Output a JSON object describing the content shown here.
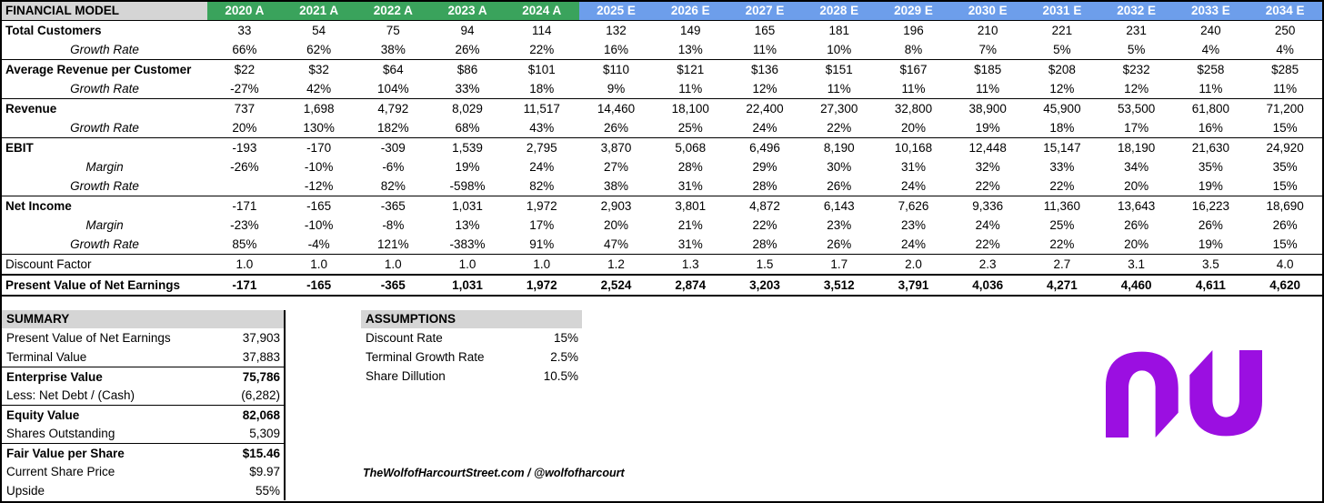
{
  "colors": {
    "actual_green": "#3aa35c",
    "estimate_blue": "#6d9eeb",
    "header_gray": "#d5d5d5",
    "brand_purple": "#9b0fe1"
  },
  "header": {
    "title": "FINANCIAL MODEL",
    "actual_years": [
      "2020 A",
      "2021 A",
      "2022 A",
      "2023 A",
      "2024 A"
    ],
    "estimate_years": [
      "2025 E",
      "2026 E",
      "2027 E",
      "2028 E",
      "2029 E",
      "2030 E",
      "2031 E",
      "2032 E",
      "2033 E",
      "2034 E"
    ]
  },
  "model": {
    "rows": [
      {
        "label": "Total Customers",
        "type": "bold",
        "values": [
          "33",
          "54",
          "75",
          "94",
          "114",
          "132",
          "149",
          "165",
          "181",
          "196",
          "210",
          "221",
          "231",
          "240",
          "250"
        ]
      },
      {
        "label": "Growth Rate",
        "type": "sub",
        "groupEnd": true,
        "values": [
          "66%",
          "62%",
          "38%",
          "26%",
          "22%",
          "16%",
          "13%",
          "11%",
          "10%",
          "8%",
          "7%",
          "5%",
          "5%",
          "4%",
          "4%"
        ]
      },
      {
        "label": "Average Revenue per Customer",
        "type": "bold",
        "values": [
          "$22",
          "$32",
          "$64",
          "$86",
          "$101",
          "$110",
          "$121",
          "$136",
          "$151",
          "$167",
          "$185",
          "$208",
          "$232",
          "$258",
          "$285"
        ]
      },
      {
        "label": "Growth Rate",
        "type": "sub",
        "groupEnd": true,
        "values": [
          "-27%",
          "42%",
          "104%",
          "33%",
          "18%",
          "9%",
          "11%",
          "12%",
          "11%",
          "11%",
          "11%",
          "12%",
          "12%",
          "11%",
          "11%"
        ]
      },
      {
        "label": "Revenue",
        "type": "bold",
        "values": [
          "737",
          "1,698",
          "4,792",
          "8,029",
          "11,517",
          "14,460",
          "18,100",
          "22,400",
          "27,300",
          "32,800",
          "38,900",
          "45,900",
          "53,500",
          "61,800",
          "71,200"
        ]
      },
      {
        "label": "Growth Rate",
        "type": "sub",
        "groupEnd": true,
        "values": [
          "20%",
          "130%",
          "182%",
          "68%",
          "43%",
          "26%",
          "25%",
          "24%",
          "22%",
          "20%",
          "19%",
          "18%",
          "17%",
          "16%",
          "15%"
        ]
      },
      {
        "label": "EBIT",
        "type": "bold",
        "values": [
          "-193",
          "-170",
          "-309",
          "1,539",
          "2,795",
          "3,870",
          "5,068",
          "6,496",
          "8,190",
          "10,168",
          "12,448",
          "15,147",
          "18,190",
          "21,630",
          "24,920"
        ]
      },
      {
        "label": "Margin",
        "type": "sub",
        "values": [
          "-26%",
          "-10%",
          "-6%",
          "19%",
          "24%",
          "27%",
          "28%",
          "29%",
          "30%",
          "31%",
          "32%",
          "33%",
          "34%",
          "35%",
          "35%"
        ]
      },
      {
        "label": "Growth Rate",
        "type": "sub",
        "groupEnd": true,
        "values": [
          "",
          "-12%",
          "82%",
          "-598%",
          "82%",
          "38%",
          "31%",
          "28%",
          "26%",
          "24%",
          "22%",
          "22%",
          "20%",
          "19%",
          "15%"
        ]
      },
      {
        "label": "Net Income",
        "type": "bold",
        "values": [
          "-171",
          "-165",
          "-365",
          "1,031",
          "1,972",
          "2,903",
          "3,801",
          "4,872",
          "6,143",
          "7,626",
          "9,336",
          "11,360",
          "13,643",
          "16,223",
          "18,690"
        ]
      },
      {
        "label": "Margin",
        "type": "sub",
        "values": [
          "-23%",
          "-10%",
          "-8%",
          "13%",
          "17%",
          "20%",
          "21%",
          "22%",
          "23%",
          "23%",
          "24%",
          "25%",
          "26%",
          "26%",
          "26%"
        ]
      },
      {
        "label": "Growth Rate",
        "type": "sub",
        "groupEnd": true,
        "values": [
          "85%",
          "-4%",
          "121%",
          "-383%",
          "91%",
          "47%",
          "31%",
          "28%",
          "26%",
          "24%",
          "22%",
          "22%",
          "20%",
          "19%",
          "15%"
        ]
      },
      {
        "label": "Discount Factor",
        "type": "plain",
        "values": [
          "1.0",
          "1.0",
          "1.0",
          "1.0",
          "1.0",
          "1.2",
          "1.3",
          "1.5",
          "1.7",
          "2.0",
          "2.3",
          "2.7",
          "3.1",
          "3.5",
          "4.0"
        ]
      },
      {
        "label": "Present Value of Net Earnings",
        "type": "total",
        "values": [
          "-171",
          "-165",
          "-365",
          "1,031",
          "1,972",
          "2,524",
          "2,874",
          "3,203",
          "3,512",
          "3,791",
          "4,036",
          "4,271",
          "4,460",
          "4,611",
          "4,620"
        ]
      }
    ]
  },
  "summary": {
    "title": "SUMMARY",
    "rows": [
      {
        "label": "Present Value of Net Earnings",
        "value": "37,903"
      },
      {
        "label": "Terminal Value",
        "value": "37,883"
      },
      {
        "label": "Enterprise Value",
        "value": "75,786",
        "bold": true,
        "topLine": true
      },
      {
        "label": "Less: Net Debt / (Cash)",
        "value": "(6,282)"
      },
      {
        "label": "Equity Value",
        "value": "82,068",
        "bold": true,
        "topLine": true
      },
      {
        "label": "Shares Outstanding",
        "value": "5,309"
      },
      {
        "label": "Fair Value per Share",
        "value": "$15.46",
        "bold": true,
        "topLine": true
      },
      {
        "label": "Current Share Price",
        "value": "$9.97"
      },
      {
        "label": "Upside",
        "value": "55%"
      }
    ]
  },
  "assumptions": {
    "title": "ASSUMPTIONS",
    "rows": [
      {
        "label": "Discount Rate",
        "value": "15%"
      },
      {
        "label": "Terminal Growth Rate",
        "value": "2.5%"
      },
      {
        "label": "Share Dillution",
        "value": "10.5%"
      }
    ]
  },
  "watermark": "TheWolfofHarcourtStreet.com / @wolfofharcourt",
  "logo": {
    "name": "nubank-nu-logo"
  }
}
